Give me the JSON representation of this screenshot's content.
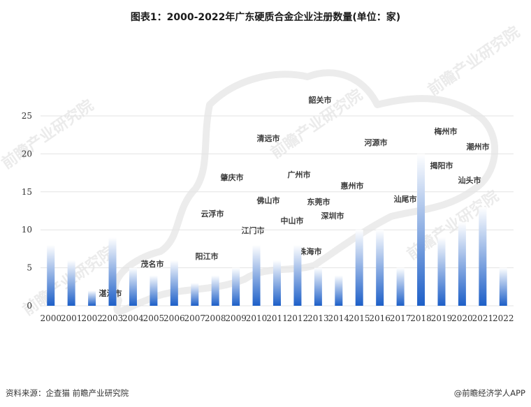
{
  "title": "图表1：2000-2022年广东硬质合金企业注册数量(单位：家)",
  "footer": {
    "source": "资料来源：企查猫 前瞻产业研究院",
    "brand": "@前瞻经济学人APP"
  },
  "watermark": "前瞻产业研究院",
  "colors": {
    "bar_top": "#ffffff",
    "bar_bottom": "#1d5fc8",
    "grid": "#e3e3e3",
    "axis_text": "#333333"
  },
  "chart_data": {
    "type": "bar",
    "categories": [
      "2000",
      "2001",
      "2002",
      "2003",
      "2004",
      "2005",
      "2006",
      "2007",
      "2008",
      "2009",
      "2010",
      "2011",
      "2012",
      "2013",
      "2014",
      "2015",
      "2016",
      "2017",
      "2018",
      "2019",
      "2020",
      "2021",
      "2022"
    ],
    "values": [
      8,
      6,
      2,
      9,
      5,
      4,
      6,
      3,
      4,
      5,
      8,
      6,
      8,
      5,
      4,
      10,
      10,
      5,
      20,
      9,
      11,
      13,
      5
    ],
    "ylim": [
      0,
      25
    ],
    "yticks": [
      0,
      5,
      10,
      15,
      20,
      25
    ],
    "grid": true,
    "title": "图表1：2000-2022年广东硬质合金企业注册数量(单位：家)",
    "xlabel": "",
    "ylabel": ""
  },
  "map_labels": [
    "韶关市",
    "清远市",
    "河源市",
    "梅州市",
    "潮州市",
    "揭阳市",
    "汕头市",
    "汕尾市",
    "广州市",
    "惠州市",
    "肇庆市",
    "云浮市",
    "佛山市",
    "东莞市",
    "深圳市",
    "中山市",
    "江门市",
    "珠海市",
    "阳江市",
    "茂名市",
    "湛江市"
  ]
}
